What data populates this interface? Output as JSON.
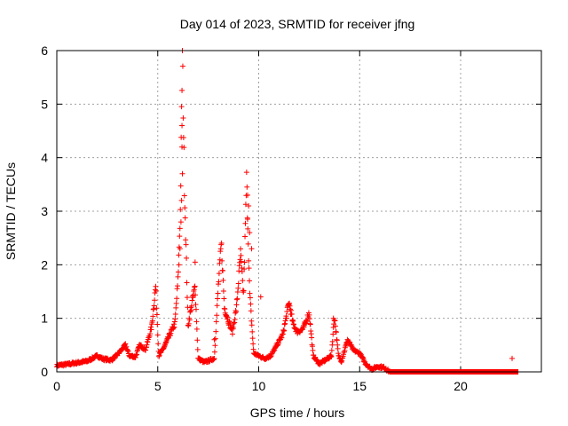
{
  "chart_data": {
    "type": "scatter",
    "title": "Day 014 of 2023, SRMTID for receiver jfng",
    "xlabel": "GPS time / hours",
    "ylabel": "SRMTID / TECUs",
    "xlim": [
      0,
      24
    ],
    "ylim": [
      0,
      6
    ],
    "x_ticks": [
      0,
      5,
      10,
      15,
      20
    ],
    "y_ticks": [
      0,
      1,
      2,
      3,
      4,
      5,
      6
    ],
    "grid": true,
    "marker": "+",
    "series": [
      {
        "name": "SRMTID",
        "color": "#ff0000",
        "profile": [
          [
            0.0,
            0.12
          ],
          [
            0.5,
            0.14
          ],
          [
            1.0,
            0.17
          ],
          [
            1.5,
            0.2
          ],
          [
            2.0,
            0.3
          ],
          [
            2.3,
            0.24
          ],
          [
            2.7,
            0.22
          ],
          [
            3.0,
            0.32
          ],
          [
            3.4,
            0.5
          ],
          [
            3.6,
            0.3
          ],
          [
            3.9,
            0.28
          ],
          [
            4.1,
            0.5
          ],
          [
            4.4,
            0.42
          ],
          [
            4.7,
            0.85
          ],
          [
            4.9,
            1.6
          ],
          [
            5.05,
            0.3
          ],
          [
            5.3,
            0.45
          ],
          [
            5.6,
            0.7
          ],
          [
            5.85,
            0.9
          ],
          [
            6.0,
            1.7
          ],
          [
            6.12,
            3.0
          ],
          [
            6.22,
            5.95
          ],
          [
            6.32,
            3.5
          ],
          [
            6.5,
            0.85
          ],
          [
            6.7,
            1.3
          ],
          [
            6.85,
            1.6
          ],
          [
            7.0,
            0.25
          ],
          [
            7.3,
            0.18
          ],
          [
            7.6,
            0.22
          ],
          [
            7.8,
            0.25
          ],
          [
            8.0,
            1.6
          ],
          [
            8.15,
            2.4
          ],
          [
            8.3,
            1.2
          ],
          [
            8.5,
            0.95
          ],
          [
            8.7,
            0.75
          ],
          [
            8.9,
            1.2
          ],
          [
            9.1,
            2.2
          ],
          [
            9.25,
            1.4
          ],
          [
            9.4,
            3.6
          ],
          [
            9.55,
            1.5
          ],
          [
            9.75,
            0.35
          ],
          [
            10.0,
            0.3
          ],
          [
            10.3,
            0.25
          ],
          [
            10.6,
            0.3
          ],
          [
            10.9,
            0.5
          ],
          [
            11.2,
            0.7
          ],
          [
            11.5,
            1.3
          ],
          [
            11.7,
            0.9
          ],
          [
            11.9,
            0.75
          ],
          [
            12.2,
            0.8
          ],
          [
            12.5,
            1.1
          ],
          [
            12.7,
            0.3
          ],
          [
            13.0,
            0.15
          ],
          [
            13.3,
            0.22
          ],
          [
            13.6,
            0.3
          ],
          [
            13.75,
            1.05
          ],
          [
            13.95,
            0.3
          ],
          [
            14.1,
            0.2
          ],
          [
            14.4,
            0.6
          ],
          [
            14.7,
            0.4
          ],
          [
            15.0,
            0.35
          ],
          [
            15.3,
            0.15
          ],
          [
            15.6,
            0.05
          ],
          [
            15.9,
            0.1
          ],
          [
            16.2,
            0.08
          ],
          [
            16.5,
            0.0
          ],
          [
            22.2,
            0.0
          ],
          [
            22.4,
            0.0
          ],
          [
            22.6,
            0.0
          ],
          [
            22.85,
            0.0
          ]
        ],
        "outliers": [
          [
            6.2,
            4.6
          ],
          [
            6.2,
            4.2
          ],
          [
            6.22,
            3.7
          ],
          [
            6.18,
            3.2
          ],
          [
            6.15,
            2.8
          ],
          [
            6.1,
            2.3
          ],
          [
            6.05,
            2.0
          ],
          [
            6.85,
            2.05
          ],
          [
            7.8,
            0.6
          ],
          [
            9.45,
            3.3
          ],
          [
            9.5,
            3.1
          ],
          [
            9.45,
            2.85
          ],
          [
            9.55,
            2.6
          ],
          [
            9.65,
            2.3
          ],
          [
            10.1,
            1.4
          ],
          [
            13.7,
            1.0
          ],
          [
            22.55,
            0.25
          ]
        ]
      }
    ]
  }
}
